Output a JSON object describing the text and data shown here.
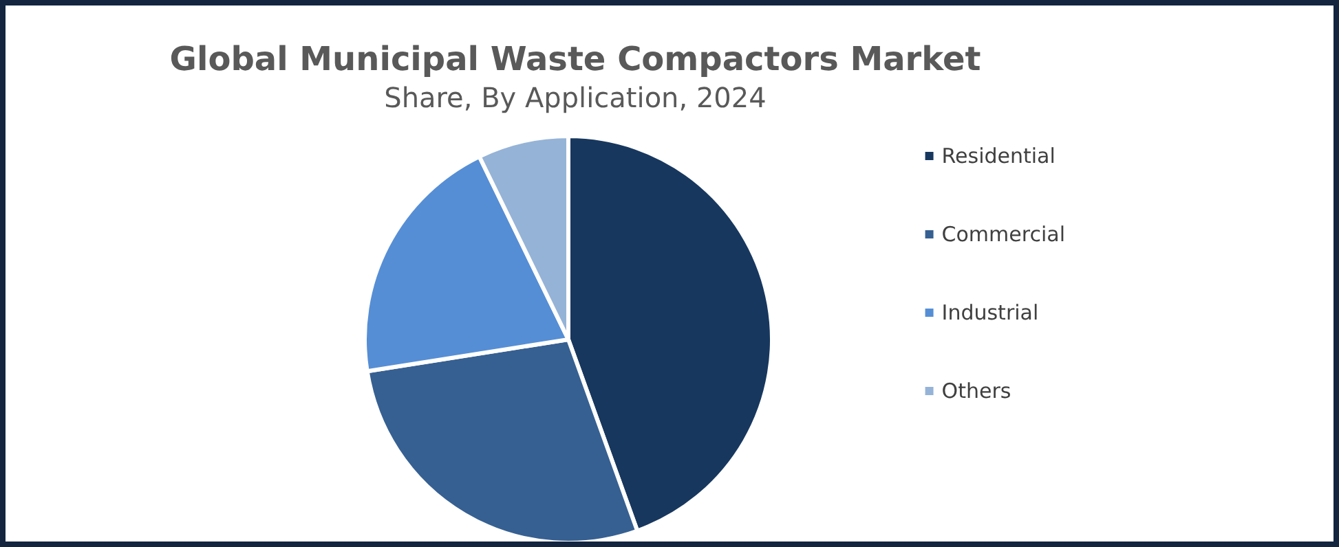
{
  "chart_data": {
    "type": "pie",
    "title": "Global Municipal Waste Compactors Market",
    "subtitle": "Share, By Application, 2024",
    "categories": [
      "Residential",
      "Commercial",
      "Industrial",
      "Others"
    ],
    "values": [
      44.5,
      28,
      20.3,
      7.2
    ],
    "colors": [
      "#17375e",
      "#366092",
      "#558ed5",
      "#95b3d7"
    ],
    "legend": "right"
  }
}
